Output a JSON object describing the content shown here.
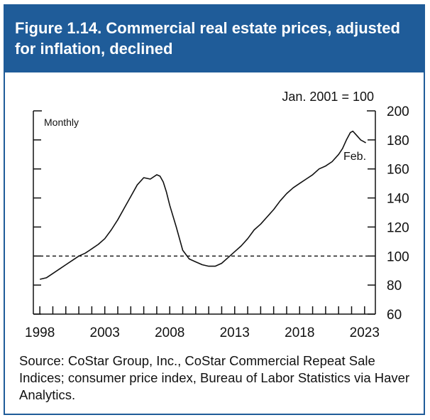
{
  "figure": {
    "title": "Figure 1.14. Commercial real estate prices, adjusted for inflation, declined",
    "source": "Source: CoStar Group, Inc., CoStar Commercial Repeat Sale Indices; consumer price index, Bureau of Labor Statistics via Haver Analytics."
  },
  "colors": {
    "header": "#1f5c99",
    "line": "#111111"
  },
  "chart_data": {
    "type": "line",
    "title": "",
    "frequency_label": "Monthly",
    "units_label": "Jan. 2001 = 100",
    "end_label": "Feb.",
    "xlabel": "",
    "ylabel": "",
    "xlim": [
      1997.5,
      2023.83
    ],
    "ylim": [
      60,
      200
    ],
    "x_ticks": [
      1998,
      2003,
      2008,
      2013,
      2018,
      2023
    ],
    "y_ticks": [
      60,
      80,
      100,
      120,
      140,
      160,
      180,
      200
    ],
    "reference_line": {
      "y": 100,
      "style": "dashed"
    },
    "grid": false,
    "series": [
      {
        "x": [
          1998.0,
          1998.5,
          1999.0,
          1999.5,
          2000.0,
          2000.5,
          2001.0,
          2001.5,
          2002.0,
          2002.5,
          2003.0,
          2003.5,
          2004.0,
          2004.5,
          2005.0,
          2005.5,
          2006.0,
          2006.5,
          2007.0,
          2007.25,
          2007.5,
          2007.75,
          2008.0,
          2008.5,
          2009.0,
          2009.5,
          2010.0,
          2010.5,
          2011.0,
          2011.5,
          2012.0,
          2012.5,
          2013.0,
          2013.5,
          2014.0,
          2014.5,
          2015.0,
          2015.5,
          2016.0,
          2016.5,
          2017.0,
          2017.5,
          2018.0,
          2018.5,
          2019.0,
          2019.5,
          2020.0,
          2020.5,
          2021.0,
          2021.3,
          2021.6,
          2021.9,
          2022.1,
          2022.3,
          2022.5,
          2022.7,
          2022.9,
          2023.1
        ],
        "values": [
          84,
          85,
          88,
          91,
          94,
          97,
          100,
          102,
          105,
          108,
          112,
          118,
          125,
          133,
          141,
          149,
          154,
          153,
          156,
          155,
          151,
          144,
          135,
          120,
          104,
          98,
          96,
          94,
          93,
          93,
          95,
          99,
          103,
          107,
          112,
          118,
          122,
          127,
          132,
          138,
          143,
          147,
          150,
          153,
          156,
          160,
          162,
          165,
          170,
          174,
          180,
          185,
          186,
          184,
          182,
          180,
          179,
          178
        ]
      }
    ]
  }
}
